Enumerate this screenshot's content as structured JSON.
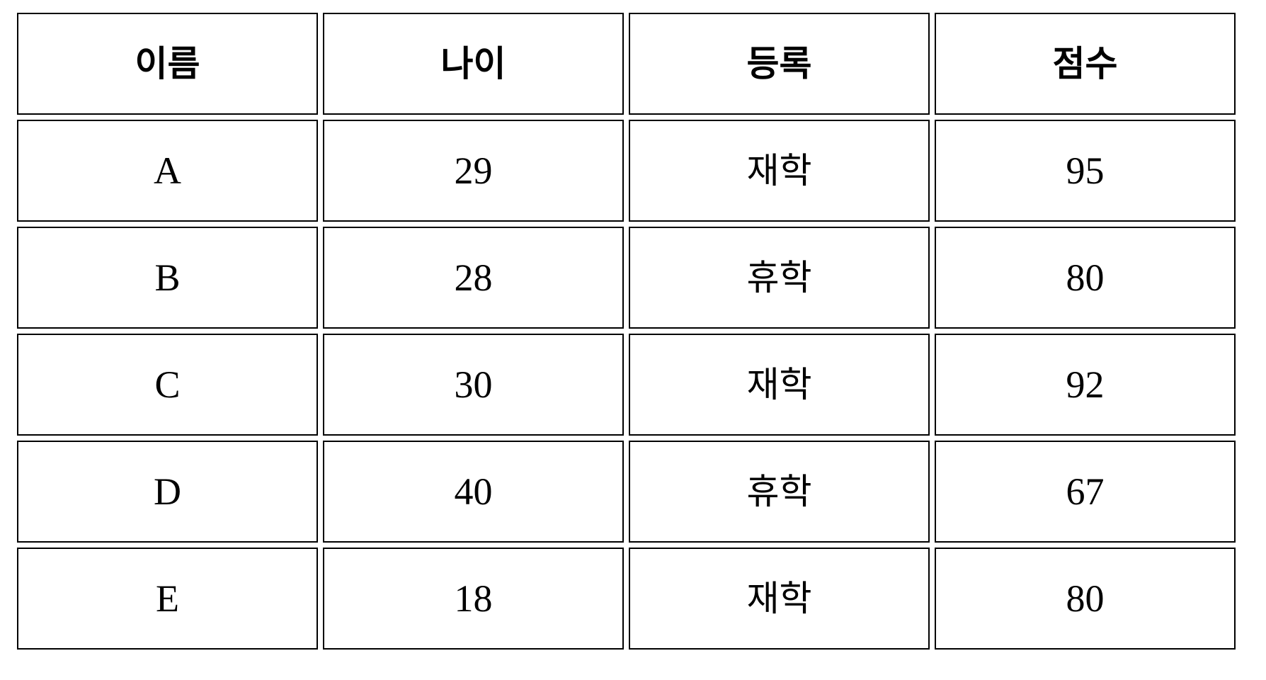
{
  "table": {
    "headers": [
      "이름",
      "나이",
      "등록",
      "점수"
    ],
    "rows": [
      [
        "A",
        "29",
        "재학",
        "95"
      ],
      [
        "B",
        "28",
        "휴학",
        "80"
      ],
      [
        "C",
        "30",
        "재학",
        "92"
      ],
      [
        "D",
        "40",
        "휴학",
        "67"
      ],
      [
        "E",
        "18",
        "재학",
        "80"
      ]
    ]
  }
}
